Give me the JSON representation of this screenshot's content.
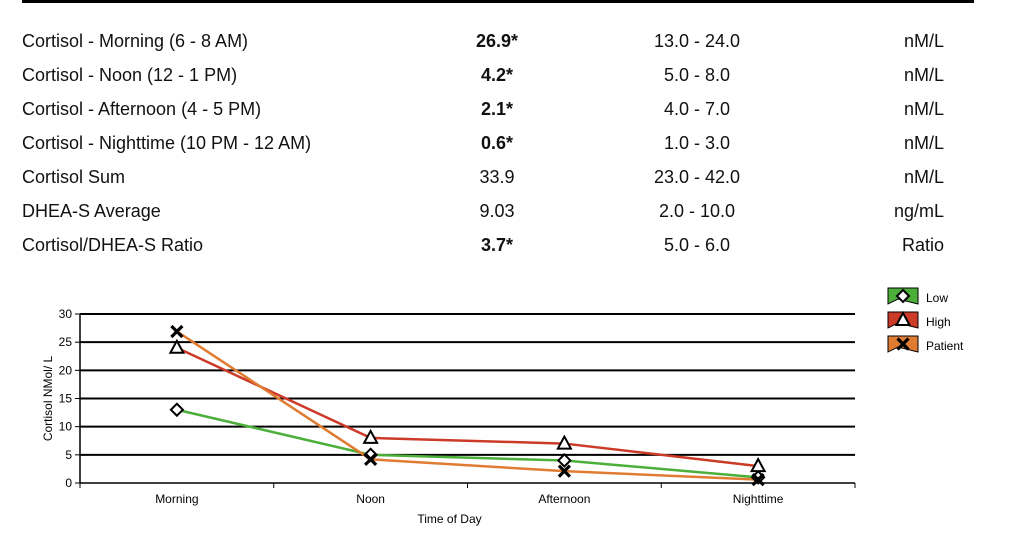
{
  "results": [
    {
      "name": "Cortisol - Morning (6 - 8 AM)",
      "result": "26.9*",
      "flag": true,
      "range": "13.0 - 24.0",
      "units": "nM/L"
    },
    {
      "name": "Cortisol - Noon (12 - 1 PM)",
      "result": "4.2*",
      "flag": true,
      "range": "5.0 - 8.0",
      "units": "nM/L"
    },
    {
      "name": "Cortisol - Afternoon (4 - 5 PM)",
      "result": "2.1*",
      "flag": true,
      "range": "4.0 - 7.0",
      "units": "nM/L"
    },
    {
      "name": "Cortisol - Nighttime (10 PM - 12 AM)",
      "result": "0.6*",
      "flag": true,
      "range": "1.0 - 3.0",
      "units": "nM/L"
    },
    {
      "name": "Cortisol Sum",
      "result": "33.9",
      "flag": false,
      "range": "23.0 - 42.0",
      "units": "nM/L"
    },
    {
      "name": "DHEA-S Average",
      "result": "9.03",
      "flag": false,
      "range": "2.0 - 10.0",
      "units": "ng/mL"
    },
    {
      "name": "Cortisol/DHEA-S Ratio",
      "result": "3.7*",
      "flag": true,
      "range": "5.0 - 6.0",
      "units": "Ratio"
    }
  ],
  "chart_data": {
    "type": "line",
    "title": "",
    "xlabel": "Time of Day",
    "ylabel": "Cortisol NMol/ L",
    "categories": [
      "Morning",
      "Noon",
      "Afternoon",
      "Nighttime"
    ],
    "ylim": [
      0,
      30
    ],
    "yticks": [
      0,
      5,
      10,
      15,
      20,
      25,
      30
    ],
    "grid": true,
    "legend_position": "top-right",
    "series": [
      {
        "name": "Low",
        "values": [
          13,
          5,
          4,
          1
        ],
        "color": "#4caf3a",
        "marker": "diamond"
      },
      {
        "name": "High",
        "values": [
          24,
          8,
          7,
          3
        ],
        "color": "#cc3a28",
        "marker": "triangle"
      },
      {
        "name": "Patient",
        "values": [
          26.9,
          4.2,
          2.1,
          0.6
        ],
        "color": "#e07c32",
        "marker": "x"
      }
    ]
  }
}
